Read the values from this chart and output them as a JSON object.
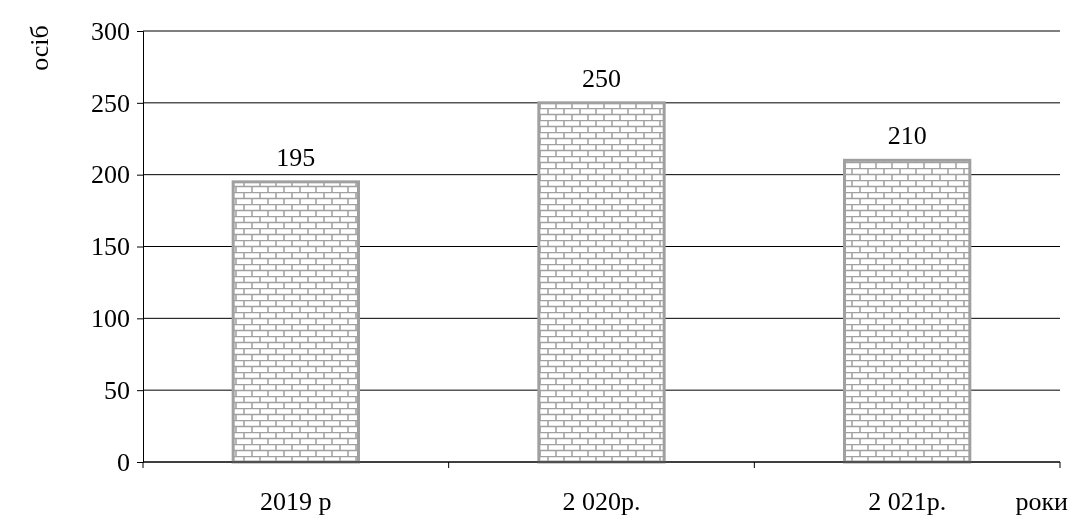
{
  "chart_data": {
    "type": "bar",
    "categories": [
      "2019 р",
      "2 020р.",
      "2 021р."
    ],
    "values": [
      195,
      250,
      210
    ],
    "color": "#a0a0a0",
    "xlabel": "роки",
    "ylabel": "осіб",
    "ylim": [
      0,
      300
    ],
    "yticks": [
      0,
      50,
      100,
      150,
      200,
      250,
      300
    ],
    "grid": "y",
    "data_labels": true
  }
}
